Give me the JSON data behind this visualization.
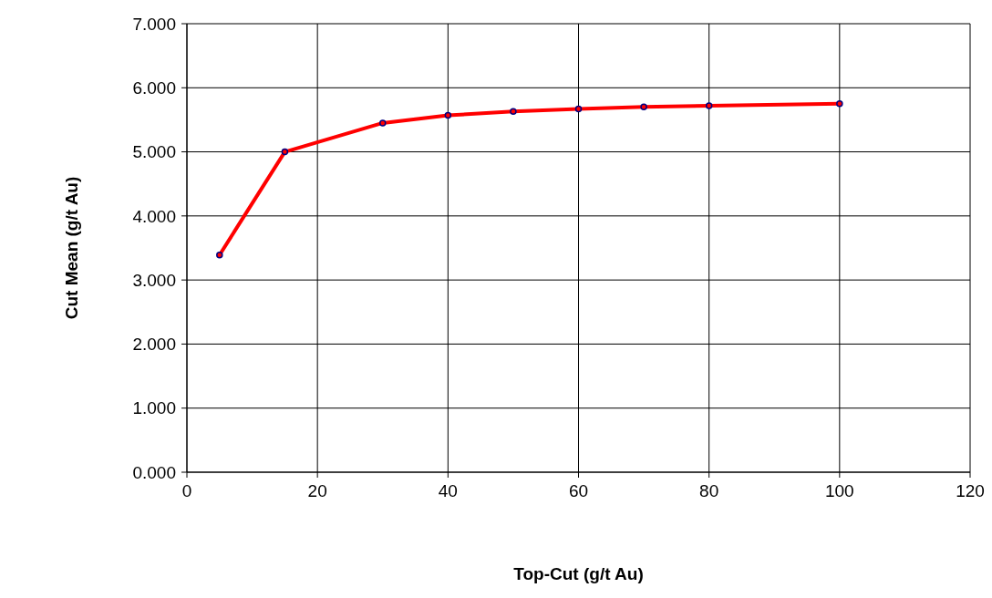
{
  "chart_data": {
    "type": "line",
    "xlabel": "Top-Cut (g/t Au)",
    "ylabel": "Cut Mean (g/t Au)",
    "x": [
      5,
      15,
      30,
      40,
      50,
      60,
      70,
      80,
      100
    ],
    "series": [
      {
        "color": "#ff0000",
        "values": [
          3.39,
          5.0,
          5.45,
          5.57,
          5.63,
          5.67,
          5.7,
          5.72,
          5.75
        ]
      }
    ],
    "xlim": [
      0,
      120
    ],
    "xticks": [
      0,
      20,
      40,
      60,
      80,
      100,
      120
    ],
    "ylim": [
      0,
      7
    ],
    "yticks": [
      {
        "value": 0,
        "label": "0.000"
      },
      {
        "value": 1,
        "label": "1.000"
      },
      {
        "value": 2,
        "label": "2.000"
      },
      {
        "value": 3,
        "label": "3.000"
      },
      {
        "value": 4,
        "label": "4.000"
      },
      {
        "value": 5,
        "label": "5.000"
      },
      {
        "value": 6,
        "label": "6.000"
      },
      {
        "value": 7,
        "label": "7.000"
      }
    ],
    "grid": true,
    "marker": "circle",
    "line_style": "solid"
  }
}
